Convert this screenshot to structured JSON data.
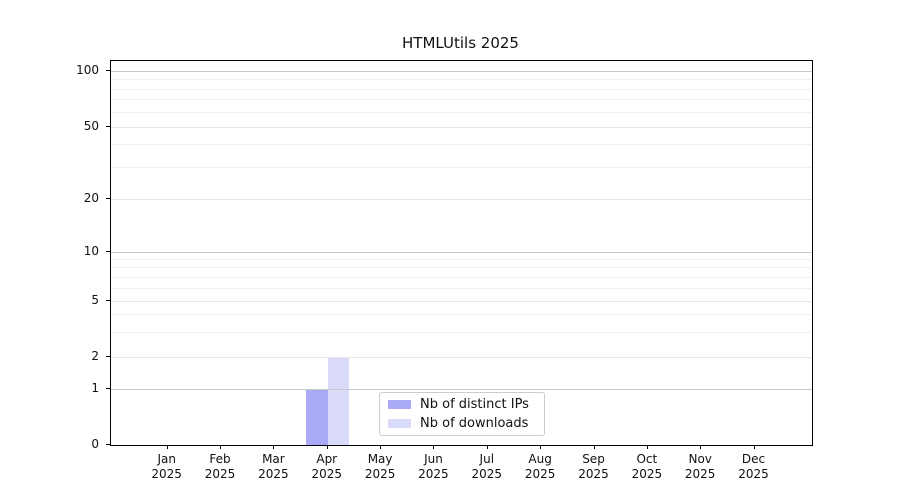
{
  "chart_data": {
    "type": "bar",
    "title": "HTMLUtils 2025",
    "categories": [
      {
        "month": "Jan",
        "year": "2025"
      },
      {
        "month": "Feb",
        "year": "2025"
      },
      {
        "month": "Mar",
        "year": "2025"
      },
      {
        "month": "Apr",
        "year": "2025"
      },
      {
        "month": "May",
        "year": "2025"
      },
      {
        "month": "Jun",
        "year": "2025"
      },
      {
        "month": "Jul",
        "year": "2025"
      },
      {
        "month": "Aug",
        "year": "2025"
      },
      {
        "month": "Sep",
        "year": "2025"
      },
      {
        "month": "Oct",
        "year": "2025"
      },
      {
        "month": "Nov",
        "year": "2025"
      },
      {
        "month": "Dec",
        "year": "2025"
      }
    ],
    "series": [
      {
        "name": "Nb of distinct IPs",
        "color": "#a9a9f7",
        "values": [
          0,
          0,
          0,
          1,
          0,
          0,
          0,
          0,
          0,
          0,
          0,
          0
        ]
      },
      {
        "name": "Nb of downloads",
        "color": "#d9d9fa",
        "values": [
          0,
          0,
          0,
          2,
          0,
          0,
          0,
          0,
          0,
          0,
          0,
          0
        ]
      }
    ],
    "y_axis": {
      "scale": "log-like",
      "ticks": [
        0,
        1,
        2,
        5,
        10,
        20,
        50,
        100
      ],
      "major_gridlines": [
        1,
        10,
        100
      ],
      "labeled_minor_gridlines": [
        2,
        5,
        20,
        50
      ],
      "minor_gridlines": [
        3,
        4,
        6,
        7,
        8,
        9,
        30,
        40,
        60,
        70,
        80,
        90
      ],
      "ylim": [
        0,
        113
      ]
    },
    "xlabel": "",
    "ylabel": "",
    "grid": true,
    "legend": {
      "position": "lower center"
    }
  }
}
